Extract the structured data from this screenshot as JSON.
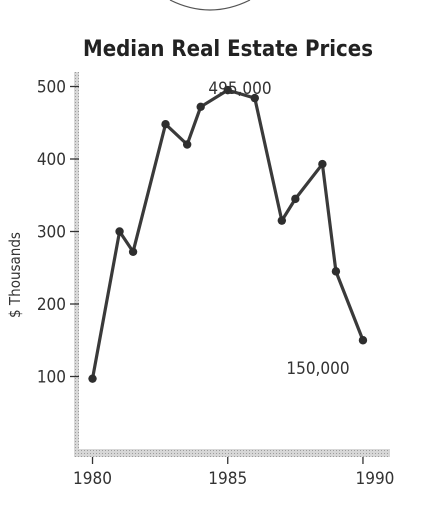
{
  "chart_data": {
    "type": "line",
    "title": "Median Real Estate Prices",
    "ylabel": "$ Thousands",
    "xlabel": "",
    "xlim": [
      1979.5,
      1991
    ],
    "ylim": [
      0,
      520
    ],
    "xticks": [
      1980,
      1985,
      1990
    ],
    "yticks": [
      100,
      200,
      300,
      400,
      500
    ],
    "series": [
      {
        "x": [
          1980,
          1981,
          1981.5,
          1982.7,
          1983.5,
          1984,
          1985,
          1986,
          1987,
          1987.5,
          1988.5,
          1989,
          1990
        ],
        "values": [
          97,
          300,
          272,
          448,
          420,
          472,
          495,
          484,
          315,
          345,
          393,
          245,
          150
        ]
      }
    ],
    "annotations": [
      "495,000",
      "150,000"
    ],
    "colors": {
      "line": "#3a3a3a",
      "marker": "#2e2e2e",
      "frame": "#9a9a9a"
    }
  }
}
